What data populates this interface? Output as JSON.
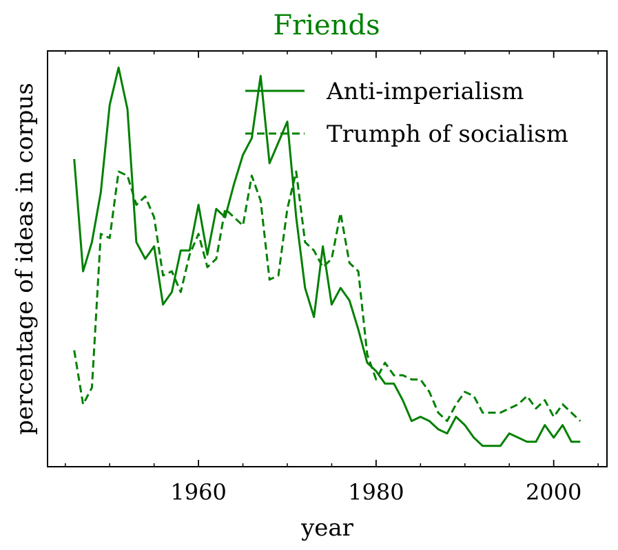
{
  "chart_data": {
    "type": "line",
    "title": "Friends",
    "xlabel": "year",
    "ylabel": "percentage of ideas in corpus",
    "xlim": [
      1943,
      2006
    ],
    "ylim": [
      0,
      1
    ],
    "xticks": [
      1960,
      1980,
      2000
    ],
    "y_tick_labels_shown": false,
    "grid": false,
    "legend_position": "top-right",
    "color": "#008000",
    "series": [
      {
        "name": "Anti-imperialism",
        "style": "solid",
        "x": [
          1946,
          1947,
          1948,
          1949,
          1950,
          1951,
          1952,
          1953,
          1954,
          1955,
          1956,
          1957,
          1958,
          1959,
          1960,
          1961,
          1962,
          1963,
          1964,
          1965,
          1966,
          1967,
          1968,
          1969,
          1970,
          1971,
          1972,
          1973,
          1974,
          1975,
          1976,
          1977,
          1978,
          1979,
          1980,
          1981,
          1982,
          1983,
          1984,
          1985,
          1986,
          1987,
          1988,
          1989,
          1990,
          1991,
          1992,
          1993,
          1994,
          1995,
          1996,
          1997,
          1998,
          1999,
          2000,
          2001,
          2002,
          2003
        ],
        "values": [
          0.74,
          0.47,
          0.54,
          0.66,
          0.87,
          0.96,
          0.86,
          0.54,
          0.5,
          0.53,
          0.39,
          0.42,
          0.52,
          0.52,
          0.63,
          0.51,
          0.62,
          0.6,
          0.68,
          0.75,
          0.79,
          0.94,
          0.73,
          0.78,
          0.83,
          0.6,
          0.43,
          0.36,
          0.53,
          0.39,
          0.43,
          0.4,
          0.33,
          0.25,
          0.23,
          0.2,
          0.2,
          0.16,
          0.11,
          0.12,
          0.11,
          0.09,
          0.08,
          0.12,
          0.1,
          0.07,
          0.05,
          0.05,
          0.05,
          0.08,
          0.07,
          0.06,
          0.06,
          0.1,
          0.07,
          0.1,
          0.06,
          0.06
        ]
      },
      {
        "name": "Trumph of socialism",
        "style": "dashed",
        "x": [
          1946,
          1947,
          1948,
          1949,
          1950,
          1951,
          1952,
          1953,
          1954,
          1955,
          1956,
          1957,
          1958,
          1959,
          1960,
          1961,
          1962,
          1963,
          1964,
          1965,
          1966,
          1967,
          1968,
          1969,
          1970,
          1971,
          1972,
          1973,
          1974,
          1975,
          1976,
          1977,
          1978,
          1979,
          1980,
          1981,
          1982,
          1983,
          1984,
          1985,
          1986,
          1987,
          1988,
          1989,
          1990,
          1991,
          1992,
          1993,
          1994,
          1995,
          1996,
          1997,
          1998,
          1999,
          2000,
          2001,
          2002,
          2003
        ],
        "values": [
          0.28,
          0.15,
          0.19,
          0.56,
          0.55,
          0.71,
          0.7,
          0.63,
          0.65,
          0.6,
          0.46,
          0.47,
          0.42,
          0.51,
          0.56,
          0.48,
          0.5,
          0.62,
          0.6,
          0.58,
          0.7,
          0.64,
          0.45,
          0.46,
          0.62,
          0.71,
          0.54,
          0.52,
          0.48,
          0.5,
          0.61,
          0.49,
          0.47,
          0.27,
          0.21,
          0.25,
          0.22,
          0.22,
          0.21,
          0.21,
          0.18,
          0.13,
          0.11,
          0.15,
          0.18,
          0.17,
          0.13,
          0.13,
          0.13,
          0.14,
          0.15,
          0.17,
          0.14,
          0.16,
          0.12,
          0.15,
          0.13,
          0.11
        ]
      }
    ]
  }
}
